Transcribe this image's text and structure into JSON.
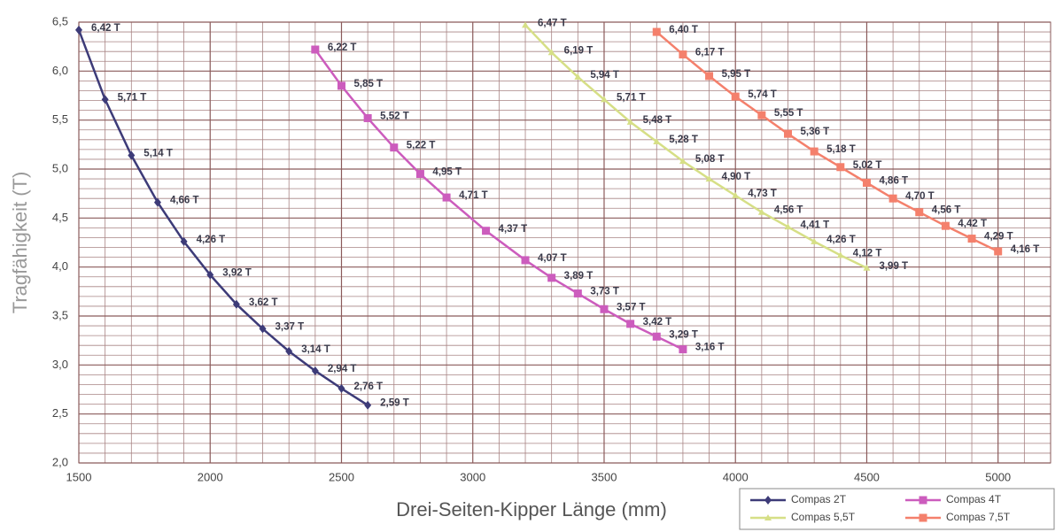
{
  "chart_data": {
    "type": "line",
    "x_label": "Drei-Seiten-Kipper Länge (mm)",
    "y_label": "Tragfähigkeit (T)",
    "xlim": [
      1500,
      5200
    ],
    "ylim": [
      2,
      6.5
    ],
    "xticks": [
      1500,
      2000,
      2500,
      3000,
      3500,
      4000,
      4500,
      5000
    ],
    "yticks": [
      {
        "value": 2,
        "label": "2,0"
      },
      {
        "value": 2.5,
        "label": "2,5"
      },
      {
        "value": 3,
        "label": "3,0"
      },
      {
        "value": 3.5,
        "label": "3,5"
      },
      {
        "value": 4,
        "label": "4,0"
      },
      {
        "value": 4.5,
        "label": "4,5"
      },
      {
        "value": 5,
        "label": "5,0"
      },
      {
        "value": 5.5,
        "label": "5,5"
      },
      {
        "value": 6,
        "label": "6,0"
      },
      {
        "value": 6.5,
        "label": "6,5"
      }
    ],
    "x_minor_ticks": [
      1600,
      1700,
      1800,
      1900,
      2100,
      2200,
      2300,
      2400,
      2600,
      2700,
      2800,
      2900,
      3100,
      3200,
      3300,
      3400,
      3600,
      3700,
      3800,
      3900,
      4100,
      4200,
      4300,
      4400,
      4600,
      4700,
      4800,
      4900,
      5100
    ],
    "y_minor_ticks": [
      2.1,
      2.2,
      2.3,
      2.4,
      2.6,
      2.7,
      2.8,
      2.9,
      3.1,
      3.2,
      3.3,
      3.4,
      3.6,
      3.7,
      3.8,
      3.9,
      4.1,
      4.2,
      4.3,
      4.4,
      4.6,
      4.7,
      4.8,
      4.9,
      5.1,
      5.2,
      5.3,
      5.4,
      5.6,
      5.7,
      5.8,
      5.9,
      6.1,
      6.2,
      6.3,
      6.4
    ],
    "grid": true,
    "legend": "bottom-right",
    "series": [
      {
        "name": "Compas 2T",
        "color": "#3d3b78",
        "marker": "diamond",
        "x": [
          1500,
          1600,
          1700,
          1800,
          1900,
          2000,
          2100,
          2200,
          2300,
          2400,
          2500,
          2600
        ],
        "values": [
          6.42,
          5.71,
          5.14,
          4.66,
          4.26,
          3.92,
          3.62,
          3.37,
          3.14,
          2.94,
          2.76,
          2.59
        ],
        "value_labels": [
          "6,42 T",
          "5,71 T",
          "5,14 T",
          "4,66 T",
          "4,26 T",
          "3,92 T",
          "3,62 T",
          "3,37 T",
          "3,14 T",
          "2,94 T",
          "2,76 T",
          "2,59 T"
        ]
      },
      {
        "name": "Compas 4T",
        "color": "#cc5cbd",
        "marker": "square",
        "x": [
          2400,
          2500,
          2600,
          2700,
          2800,
          2900,
          3050,
          3200,
          3300,
          3400,
          3500,
          3600,
          3700,
          3800
        ],
        "values": [
          6.22,
          5.85,
          5.52,
          5.22,
          4.95,
          4.71,
          4.37,
          4.07,
          3.89,
          3.73,
          3.57,
          3.42,
          3.29,
          3.16
        ],
        "value_labels": [
          "6,22 T",
          "5,85 T",
          "5,52 T",
          "5,22 T",
          "4,95 T",
          "4,71 T",
          "4,37 T",
          "4,07 T",
          "3,89 T",
          "3,73 T",
          "3,57 T",
          "3,42 T",
          "3,29 T",
          "3,16 T"
        ]
      },
      {
        "name": "Compas 5,5T",
        "color": "#d6df86",
        "marker": "triangle",
        "x": [
          3200,
          3300,
          3400,
          3500,
          3600,
          3700,
          3800,
          3900,
          4000,
          4100,
          4200,
          4300,
          4400,
          4500
        ],
        "values": [
          6.47,
          6.19,
          5.94,
          5.71,
          5.48,
          5.28,
          5.08,
          4.9,
          4.73,
          4.56,
          4.41,
          4.26,
          4.12,
          3.99
        ],
        "value_labels": [
          "6,47 T",
          "6,19 T",
          "5,94 T",
          "5,71 T",
          "5,48 T",
          "5,28 T",
          "5,08 T",
          "4,90 T",
          "4,73 T",
          "4,56 T",
          "4,41 T",
          "4,26 T",
          "4,12 T",
          "3,99 T"
        ]
      },
      {
        "name": "Compas 7,5T",
        "color": "#f4806c",
        "marker": "square",
        "x": [
          3700,
          3800,
          3900,
          4000,
          4100,
          4200,
          4300,
          4400,
          4500,
          4600,
          4700,
          4800,
          4900,
          5000
        ],
        "values": [
          6.4,
          6.17,
          5.95,
          5.74,
          5.55,
          5.36,
          5.18,
          5.02,
          4.86,
          4.7,
          4.56,
          4.42,
          4.29,
          4.16
        ],
        "value_labels": [
          "6,40 T",
          "6,17 T",
          "5,95 T",
          "5,74 T",
          "5,55 T",
          "5,36 T",
          "5,18 T",
          "5,02 T",
          "4,86 T",
          "4,70 T",
          "4,56 T",
          "4,42 T",
          "4,29 T",
          "4,16 T"
        ]
      }
    ]
  }
}
